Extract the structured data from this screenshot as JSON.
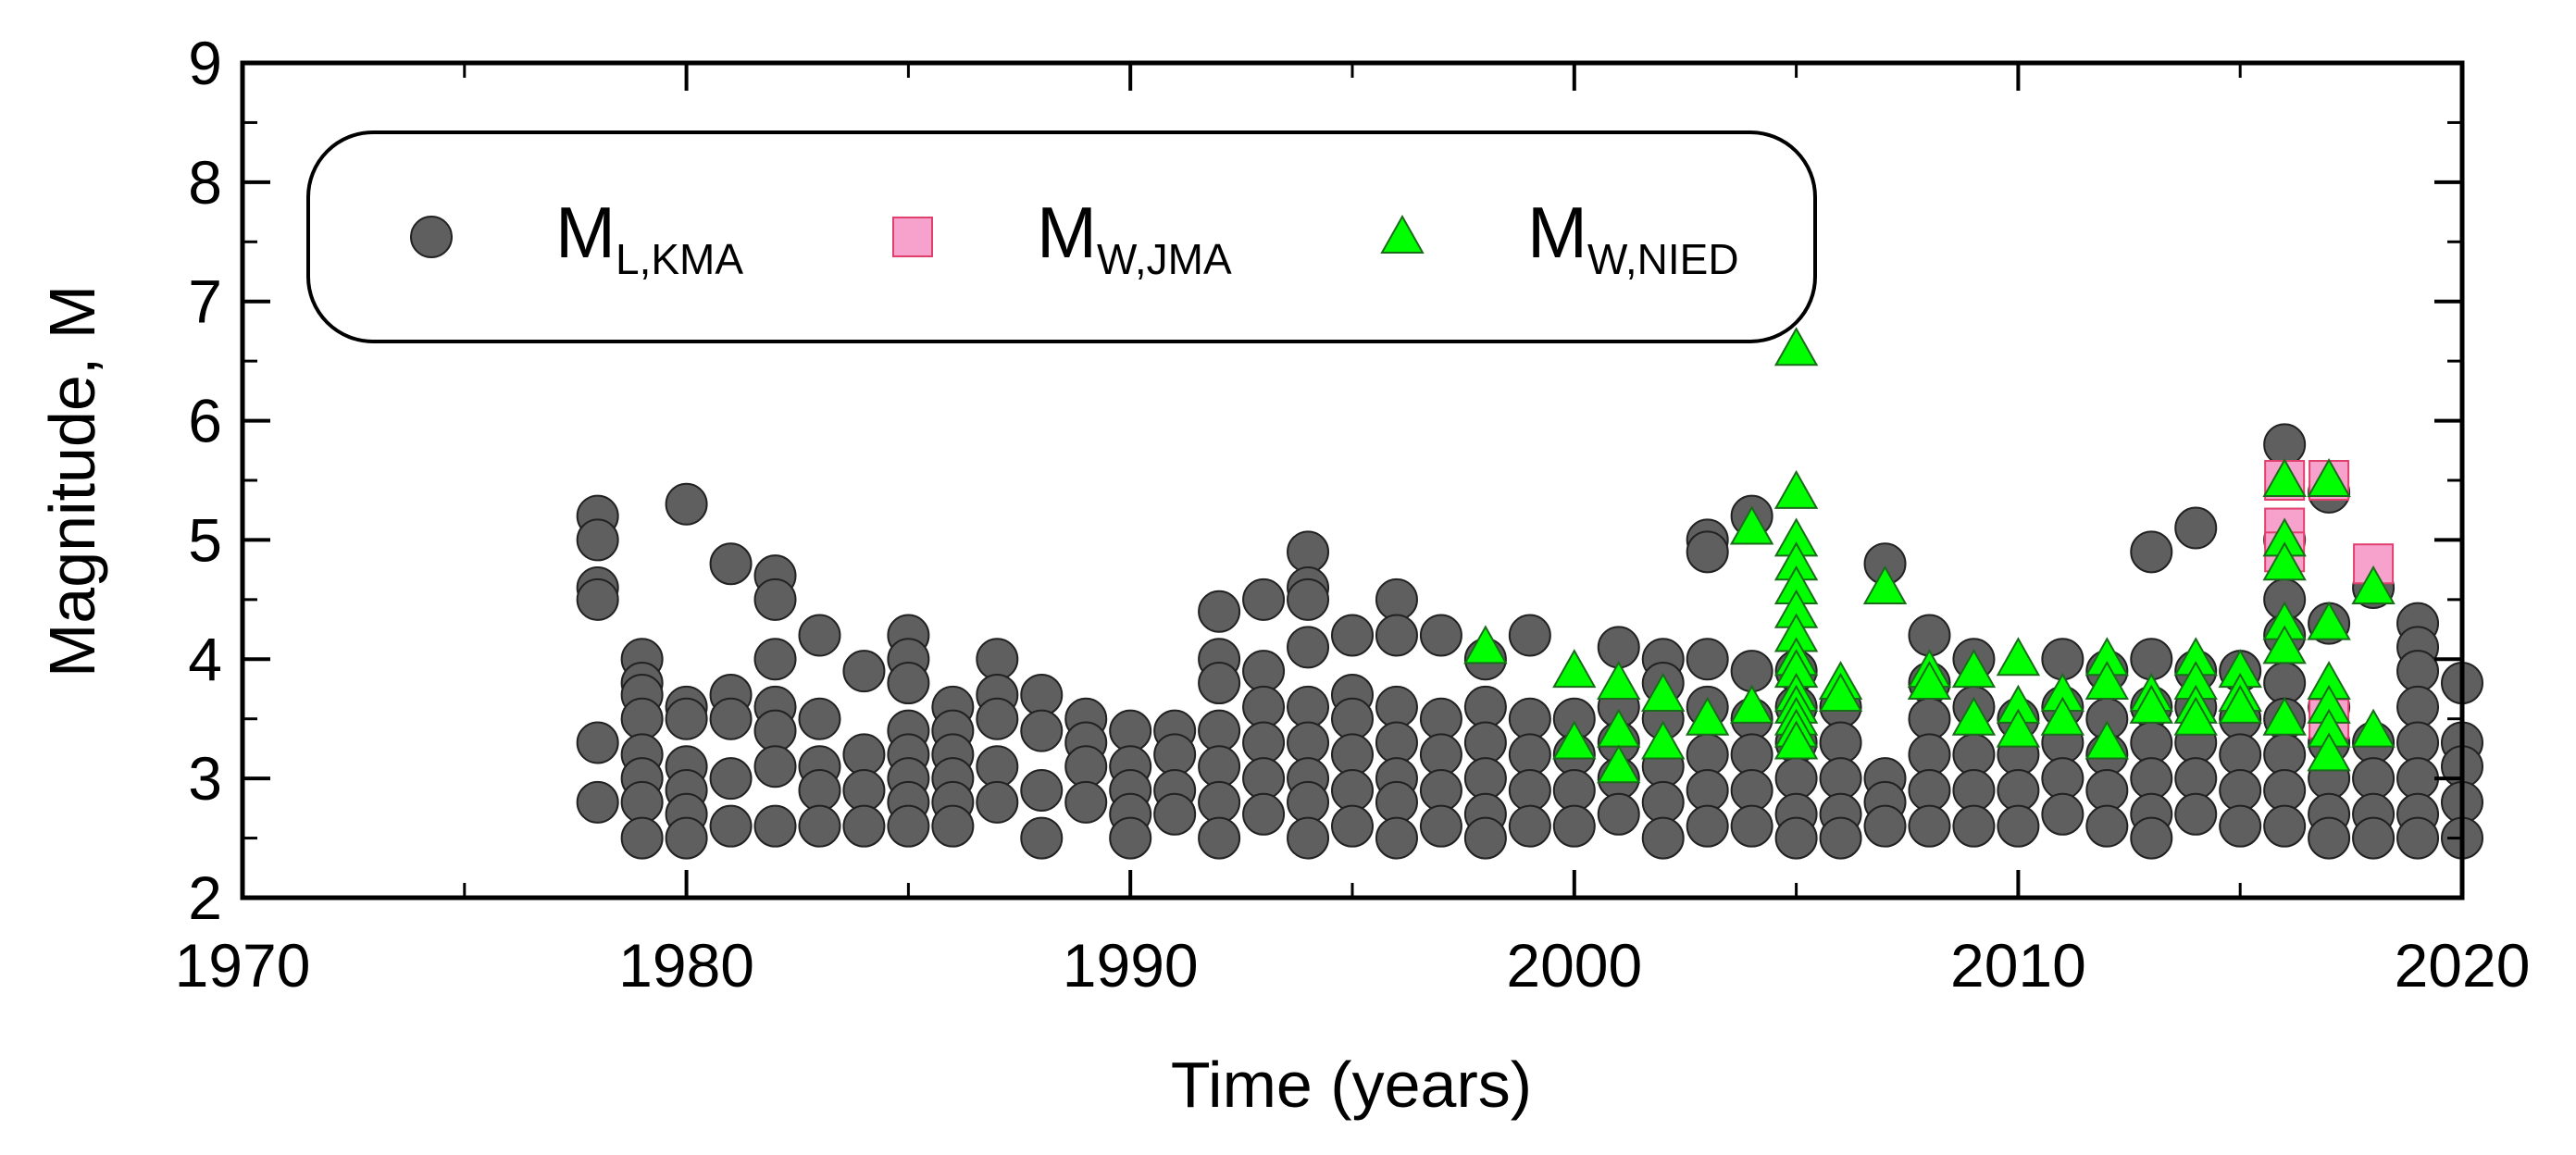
{
  "chart_data": {
    "type": "scatter",
    "title": "",
    "xlabel": "Time (years)",
    "ylabel": "Magnitude, M",
    "xlim": [
      1970,
      2020
    ],
    "ylim": [
      2,
      9
    ],
    "xticks": [
      1970,
      1980,
      1990,
      2000,
      2010,
      2020
    ],
    "yticks": [
      2,
      3,
      4,
      5,
      6,
      7,
      8,
      9
    ],
    "grid": false,
    "legend_position": "top-left",
    "series": [
      {
        "name": "ML,KMA",
        "legend_main": "M",
        "legend_sub": "L,KMA",
        "marker": "circle",
        "color": "#5f5f5f",
        "points": [
          [
            1978,
            5.2
          ],
          [
            1978,
            5.0
          ],
          [
            1978,
            4.6
          ],
          [
            1978,
            4.5
          ],
          [
            1978,
            3.3
          ],
          [
            1978,
            2.8
          ],
          [
            1979,
            4.0
          ],
          [
            1979,
            3.8
          ],
          [
            1979,
            3.7
          ],
          [
            1979,
            3.5
          ],
          [
            1979,
            3.2
          ],
          [
            1979,
            3.0
          ],
          [
            1979,
            2.8
          ],
          [
            1979,
            2.5
          ],
          [
            1980,
            5.3
          ],
          [
            1980,
            3.6
          ],
          [
            1980,
            3.5
          ],
          [
            1980,
            3.1
          ],
          [
            1980,
            2.9
          ],
          [
            1980,
            2.7
          ],
          [
            1980,
            2.5
          ],
          [
            1981,
            4.8
          ],
          [
            1981,
            3.7
          ],
          [
            1981,
            3.5
          ],
          [
            1981,
            3.0
          ],
          [
            1981,
            2.6
          ],
          [
            1982,
            4.7
          ],
          [
            1982,
            4.5
          ],
          [
            1982,
            4.0
          ],
          [
            1982,
            3.6
          ],
          [
            1982,
            3.4
          ],
          [
            1982,
            3.1
          ],
          [
            1982,
            2.6
          ],
          [
            1983,
            4.2
          ],
          [
            1983,
            3.5
          ],
          [
            1983,
            3.1
          ],
          [
            1983,
            2.9
          ],
          [
            1983,
            2.6
          ],
          [
            1984,
            3.9
          ],
          [
            1984,
            3.2
          ],
          [
            1984,
            2.9
          ],
          [
            1984,
            2.6
          ],
          [
            1985,
            4.2
          ],
          [
            1985,
            4.0
          ],
          [
            1985,
            3.8
          ],
          [
            1985,
            3.4
          ],
          [
            1985,
            3.2
          ],
          [
            1985,
            3.0
          ],
          [
            1985,
            2.8
          ],
          [
            1985,
            2.6
          ],
          [
            1986,
            3.6
          ],
          [
            1986,
            3.4
          ],
          [
            1986,
            3.2
          ],
          [
            1986,
            3.0
          ],
          [
            1986,
            2.8
          ],
          [
            1986,
            2.6
          ],
          [
            1987,
            4.0
          ],
          [
            1987,
            3.7
          ],
          [
            1987,
            3.5
          ],
          [
            1987,
            3.1
          ],
          [
            1987,
            2.8
          ],
          [
            1988,
            3.7
          ],
          [
            1988,
            3.4
          ],
          [
            1988,
            2.9
          ],
          [
            1988,
            2.5
          ],
          [
            1989,
            3.5
          ],
          [
            1989,
            3.3
          ],
          [
            1989,
            3.1
          ],
          [
            1989,
            2.8
          ],
          [
            1990,
            3.4
          ],
          [
            1990,
            3.1
          ],
          [
            1990,
            2.9
          ],
          [
            1990,
            2.7
          ],
          [
            1990,
            2.5
          ],
          [
            1991,
            3.4
          ],
          [
            1991,
            3.2
          ],
          [
            1991,
            2.9
          ],
          [
            1991,
            2.7
          ],
          [
            1992,
            4.4
          ],
          [
            1992,
            4.0
          ],
          [
            1992,
            3.8
          ],
          [
            1992,
            3.4
          ],
          [
            1992,
            3.1
          ],
          [
            1992,
            2.8
          ],
          [
            1992,
            2.5
          ],
          [
            1993,
            4.5
          ],
          [
            1993,
            3.9
          ],
          [
            1993,
            3.6
          ],
          [
            1993,
            3.3
          ],
          [
            1993,
            3.0
          ],
          [
            1993,
            2.7
          ],
          [
            1994,
            4.9
          ],
          [
            1994,
            4.6
          ],
          [
            1994,
            4.5
          ],
          [
            1994,
            4.1
          ],
          [
            1994,
            3.6
          ],
          [
            1994,
            3.3
          ],
          [
            1994,
            3.0
          ],
          [
            1994,
            2.8
          ],
          [
            1994,
            2.5
          ],
          [
            1995,
            4.2
          ],
          [
            1995,
            3.7
          ],
          [
            1995,
            3.5
          ],
          [
            1995,
            3.2
          ],
          [
            1995,
            2.9
          ],
          [
            1995,
            2.6
          ],
          [
            1996,
            4.5
          ],
          [
            1996,
            4.2
          ],
          [
            1996,
            3.6
          ],
          [
            1996,
            3.3
          ],
          [
            1996,
            3.0
          ],
          [
            1996,
            2.8
          ],
          [
            1996,
            2.5
          ],
          [
            1997,
            4.2
          ],
          [
            1997,
            3.5
          ],
          [
            1997,
            3.2
          ],
          [
            1997,
            2.9
          ],
          [
            1997,
            2.6
          ],
          [
            1998,
            4.0
          ],
          [
            1998,
            3.6
          ],
          [
            1998,
            3.3
          ],
          [
            1998,
            3.0
          ],
          [
            1998,
            2.7
          ],
          [
            1998,
            2.5
          ],
          [
            1999,
            4.2
          ],
          [
            1999,
            3.5
          ],
          [
            1999,
            3.2
          ],
          [
            1999,
            2.9
          ],
          [
            1999,
            2.6
          ],
          [
            2000,
            3.5
          ],
          [
            2000,
            3.2
          ],
          [
            2000,
            2.9
          ],
          [
            2000,
            2.6
          ],
          [
            2001,
            4.1
          ],
          [
            2001,
            3.6
          ],
          [
            2001,
            3.3
          ],
          [
            2001,
            3.0
          ],
          [
            2001,
            2.7
          ],
          [
            2002,
            4.0
          ],
          [
            2002,
            3.8
          ],
          [
            2002,
            3.5
          ],
          [
            2002,
            3.1
          ],
          [
            2002,
            2.8
          ],
          [
            2002,
            2.5
          ],
          [
            2003,
            5.0
          ],
          [
            2003,
            4.9
          ],
          [
            2003,
            4.0
          ],
          [
            2003,
            3.6
          ],
          [
            2003,
            3.2
          ],
          [
            2003,
            2.9
          ],
          [
            2003,
            2.6
          ],
          [
            2004,
            5.2
          ],
          [
            2004,
            3.9
          ],
          [
            2004,
            3.5
          ],
          [
            2004,
            3.2
          ],
          [
            2004,
            2.9
          ],
          [
            2004,
            2.6
          ],
          [
            2005,
            3.9
          ],
          [
            2005,
            3.6
          ],
          [
            2005,
            3.3
          ],
          [
            2005,
            3.0
          ],
          [
            2005,
            2.7
          ],
          [
            2005,
            2.5
          ],
          [
            2006,
            3.6
          ],
          [
            2006,
            3.3
          ],
          [
            2006,
            3.0
          ],
          [
            2006,
            2.7
          ],
          [
            2006,
            2.5
          ],
          [
            2007,
            4.8
          ],
          [
            2007,
            3.0
          ],
          [
            2007,
            2.8
          ],
          [
            2007,
            2.6
          ],
          [
            2008,
            4.2
          ],
          [
            2008,
            3.8
          ],
          [
            2008,
            3.5
          ],
          [
            2008,
            3.2
          ],
          [
            2008,
            2.9
          ],
          [
            2008,
            2.6
          ],
          [
            2009,
            4.0
          ],
          [
            2009,
            3.6
          ],
          [
            2009,
            3.2
          ],
          [
            2009,
            2.9
          ],
          [
            2009,
            2.6
          ],
          [
            2010,
            3.5
          ],
          [
            2010,
            3.2
          ],
          [
            2010,
            2.9
          ],
          [
            2010,
            2.6
          ],
          [
            2011,
            4.0
          ],
          [
            2011,
            3.6
          ],
          [
            2011,
            3.3
          ],
          [
            2011,
            3.0
          ],
          [
            2011,
            2.7
          ],
          [
            2012,
            3.9
          ],
          [
            2012,
            3.5
          ],
          [
            2012,
            3.2
          ],
          [
            2012,
            2.9
          ],
          [
            2012,
            2.6
          ],
          [
            2013,
            4.9
          ],
          [
            2013,
            4.0
          ],
          [
            2013,
            3.6
          ],
          [
            2013,
            3.3
          ],
          [
            2013,
            3.0
          ],
          [
            2013,
            2.7
          ],
          [
            2013,
            2.5
          ],
          [
            2014,
            5.1
          ],
          [
            2014,
            3.9
          ],
          [
            2014,
            3.6
          ],
          [
            2014,
            3.3
          ],
          [
            2014,
            3.0
          ],
          [
            2014,
            2.7
          ],
          [
            2015,
            3.9
          ],
          [
            2015,
            3.5
          ],
          [
            2015,
            3.2
          ],
          [
            2015,
            2.9
          ],
          [
            2015,
            2.6
          ],
          [
            2016,
            5.8
          ],
          [
            2016,
            5.0
          ],
          [
            2016,
            4.5
          ],
          [
            2016,
            4.2
          ],
          [
            2016,
            3.8
          ],
          [
            2016,
            3.5
          ],
          [
            2016,
            3.2
          ],
          [
            2016,
            2.9
          ],
          [
            2016,
            2.6
          ],
          [
            2017,
            5.4
          ],
          [
            2017,
            4.3
          ],
          [
            2017,
            3.6
          ],
          [
            2017,
            3.3
          ],
          [
            2017,
            3.0
          ],
          [
            2017,
            2.7
          ],
          [
            2017,
            2.5
          ],
          [
            2018,
            4.6
          ],
          [
            2018,
            3.3
          ],
          [
            2018,
            3.0
          ],
          [
            2018,
            2.7
          ],
          [
            2018,
            2.5
          ],
          [
            2019,
            4.3
          ],
          [
            2019,
            4.1
          ],
          [
            2019,
            3.9
          ],
          [
            2019,
            3.6
          ],
          [
            2019,
            3.3
          ],
          [
            2019,
            3.0
          ],
          [
            2019,
            2.7
          ],
          [
            2019,
            2.5
          ],
          [
            2020,
            3.8
          ],
          [
            2020,
            3.3
          ],
          [
            2020,
            3.1
          ],
          [
            2020,
            2.8
          ],
          [
            2020,
            2.5
          ]
        ]
      },
      {
        "name": "MW,JMA",
        "legend_main": "M",
        "legend_sub": "W,JMA",
        "marker": "square",
        "color": "#f6a2cc",
        "stroke": "#e0406e",
        "points": [
          [
            2016,
            5.5
          ],
          [
            2016,
            5.1
          ],
          [
            2016,
            4.9
          ],
          [
            2017,
            5.5
          ],
          [
            2017,
            3.5
          ],
          [
            2018,
            4.8
          ]
        ]
      },
      {
        "name": "MW,NIED",
        "legend_main": "M",
        "legend_sub": "W,NIED",
        "marker": "triangle",
        "color": "#00ff00",
        "points": [
          [
            1998,
            4.1
          ],
          [
            2000,
            3.9
          ],
          [
            2000,
            3.3
          ],
          [
            2001,
            3.8
          ],
          [
            2001,
            3.4
          ],
          [
            2001,
            3.1
          ],
          [
            2002,
            3.7
          ],
          [
            2002,
            3.3
          ],
          [
            2003,
            3.5
          ],
          [
            2004,
            5.1
          ],
          [
            2004,
            3.6
          ],
          [
            2005,
            6.6
          ],
          [
            2005,
            5.4
          ],
          [
            2005,
            5.0
          ],
          [
            2005,
            4.8
          ],
          [
            2005,
            4.6
          ],
          [
            2005,
            4.4
          ],
          [
            2005,
            4.2
          ],
          [
            2005,
            4.0
          ],
          [
            2005,
            3.9
          ],
          [
            2005,
            3.7
          ],
          [
            2005,
            3.6
          ],
          [
            2005,
            3.5
          ],
          [
            2005,
            3.4
          ],
          [
            2005,
            3.3
          ],
          [
            2006,
            3.8
          ],
          [
            2006,
            3.7
          ],
          [
            2007,
            4.6
          ],
          [
            2008,
            3.9
          ],
          [
            2008,
            3.8
          ],
          [
            2009,
            3.9
          ],
          [
            2009,
            3.5
          ],
          [
            2010,
            4.0
          ],
          [
            2010,
            3.6
          ],
          [
            2010,
            3.4
          ],
          [
            2011,
            3.7
          ],
          [
            2011,
            3.5
          ],
          [
            2012,
            4.0
          ],
          [
            2012,
            3.8
          ],
          [
            2012,
            3.3
          ],
          [
            2013,
            3.7
          ],
          [
            2013,
            3.6
          ],
          [
            2014,
            4.0
          ],
          [
            2014,
            3.8
          ],
          [
            2014,
            3.6
          ],
          [
            2014,
            3.5
          ],
          [
            2015,
            3.9
          ],
          [
            2015,
            3.7
          ],
          [
            2015,
            3.6
          ],
          [
            2016,
            5.5
          ],
          [
            2016,
            5.0
          ],
          [
            2016,
            4.8
          ],
          [
            2016,
            4.3
          ],
          [
            2016,
            4.1
          ],
          [
            2016,
            3.5
          ],
          [
            2017,
            5.5
          ],
          [
            2017,
            4.3
          ],
          [
            2017,
            3.8
          ],
          [
            2017,
            3.6
          ],
          [
            2017,
            3.4
          ],
          [
            2017,
            3.2
          ],
          [
            2018,
            4.6
          ],
          [
            2018,
            3.4
          ]
        ]
      }
    ]
  }
}
